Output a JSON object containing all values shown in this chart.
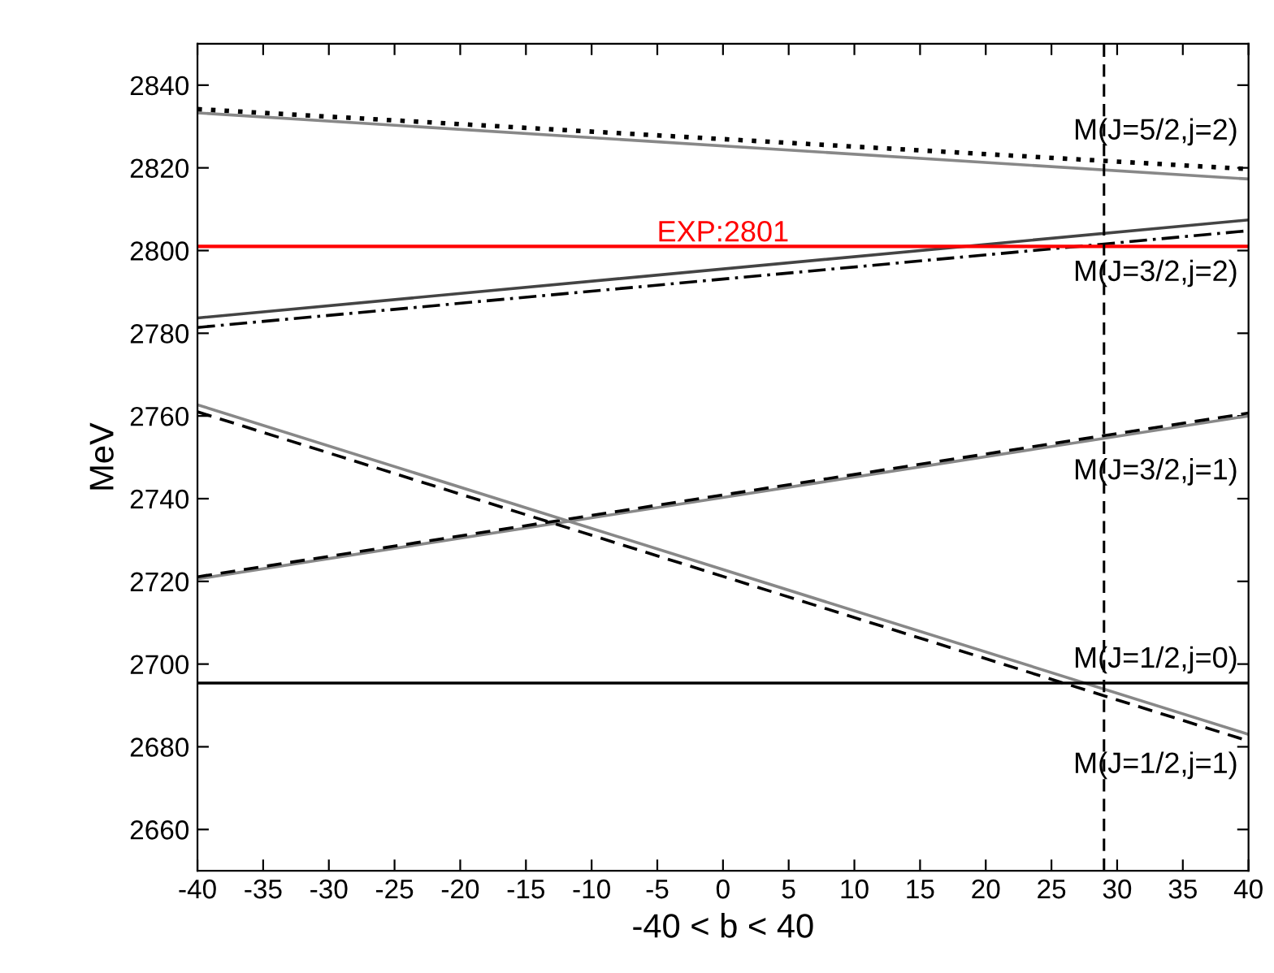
{
  "chart_data": {
    "type": "line",
    "xlabel": "-40 < b < 40",
    "ylabel": "MeV",
    "xlim": [
      -40,
      40
    ],
    "xticks": [
      -40,
      -35,
      -30,
      -25,
      -20,
      -15,
      -10,
      -5,
      0,
      5,
      10,
      15,
      20,
      25,
      30,
      35,
      40
    ],
    "ylim": [
      2650,
      2850
    ],
    "yticks": [
      2660,
      2680,
      2700,
      2720,
      2740,
      2760,
      2780,
      2800,
      2820,
      2840
    ],
    "grid": false,
    "legend": false,
    "marker": "none",
    "x": [
      -40,
      40
    ],
    "series": [
      {
        "color": "#888888",
        "line_style": "solid",
        "values": [
          2833.3,
          2817.3
        ]
      },
      {
        "color": "#000000",
        "line_style": "dotted",
        "values": [
          2834.2,
          2819.7
        ]
      },
      {
        "color": "#444444",
        "line_style": "solid",
        "values": [
          2783.7,
          2807.4
        ]
      },
      {
        "color": "#000000",
        "line_style": "dashdot",
        "values": [
          2781.4,
          2804.8
        ]
      },
      {
        "color": "#888888",
        "line_style": "solid",
        "values": [
          2720.6,
          2760.0
        ]
      },
      {
        "color": "#000000",
        "line_style": "dashed",
        "values": [
          2721.1,
          2760.7
        ]
      },
      {
        "color": "#888888",
        "line_style": "solid",
        "values": [
          2762.7,
          2683.0
        ]
      },
      {
        "color": "#000000",
        "line_style": "dashed",
        "values": [
          2761.0,
          2681.4
        ]
      },
      {
        "color": "#000000",
        "line_style": "solid",
        "values": [
          2695.4,
          2695.4
        ]
      }
    ],
    "ref_lines": [
      {
        "axis": "y",
        "value": 2801,
        "label": "EXP:2801",
        "color": "#ff0000",
        "line_style": "solid"
      },
      {
        "axis": "x",
        "value": 29,
        "color": "#000000",
        "line_style": "dashed"
      }
    ],
    "annotations": [
      "M(J=5/2,j=2)",
      "M(J=3/2,j=2)",
      "M(J=3/2,j=1)",
      "M(J=1/2,j=0)",
      "M(J=1/2,j=1)"
    ]
  }
}
